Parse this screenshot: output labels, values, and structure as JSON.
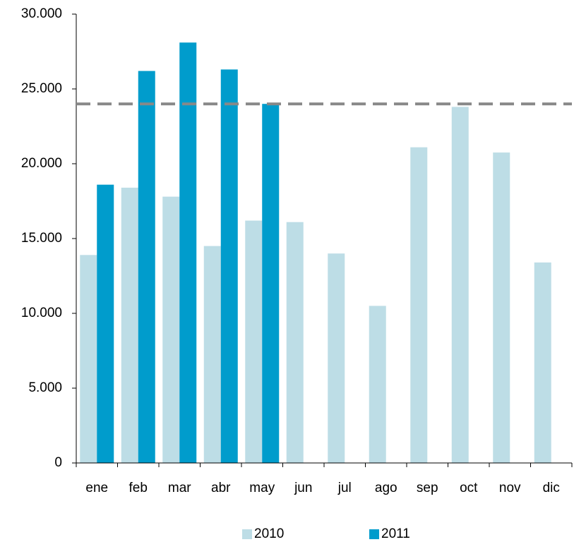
{
  "chart_data": {
    "type": "bar",
    "categories": [
      "ene",
      "feb",
      "mar",
      "abr",
      "may",
      "jun",
      "jul",
      "ago",
      "sep",
      "oct",
      "nov",
      "dic"
    ],
    "series": [
      {
        "name": "2010",
        "color": "#bddde6",
        "values": [
          13900,
          18400,
          17800,
          14500,
          16200,
          16100,
          14000,
          10500,
          21100,
          23800,
          20750,
          13400
        ]
      },
      {
        "name": "2011",
        "color": "#009ccc",
        "values": [
          18600,
          26200,
          28100,
          26300,
          24000,
          null,
          null,
          null,
          null,
          null,
          null,
          null
        ]
      }
    ],
    "reference_line": 24000,
    "ylim": [
      0,
      30000
    ],
    "yticks": [
      0,
      {
        "value": 5000,
        "label": "5.000"
      },
      {
        "value": 10000,
        "label": "10.000"
      },
      {
        "value": 15000,
        "label": "15.000"
      },
      {
        "value": 20000,
        "label": "20.000"
      },
      {
        "value": 25000,
        "label": "25.000"
      },
      {
        "value": 30000,
        "label": "30.000"
      }
    ],
    "legend": "bottom"
  }
}
